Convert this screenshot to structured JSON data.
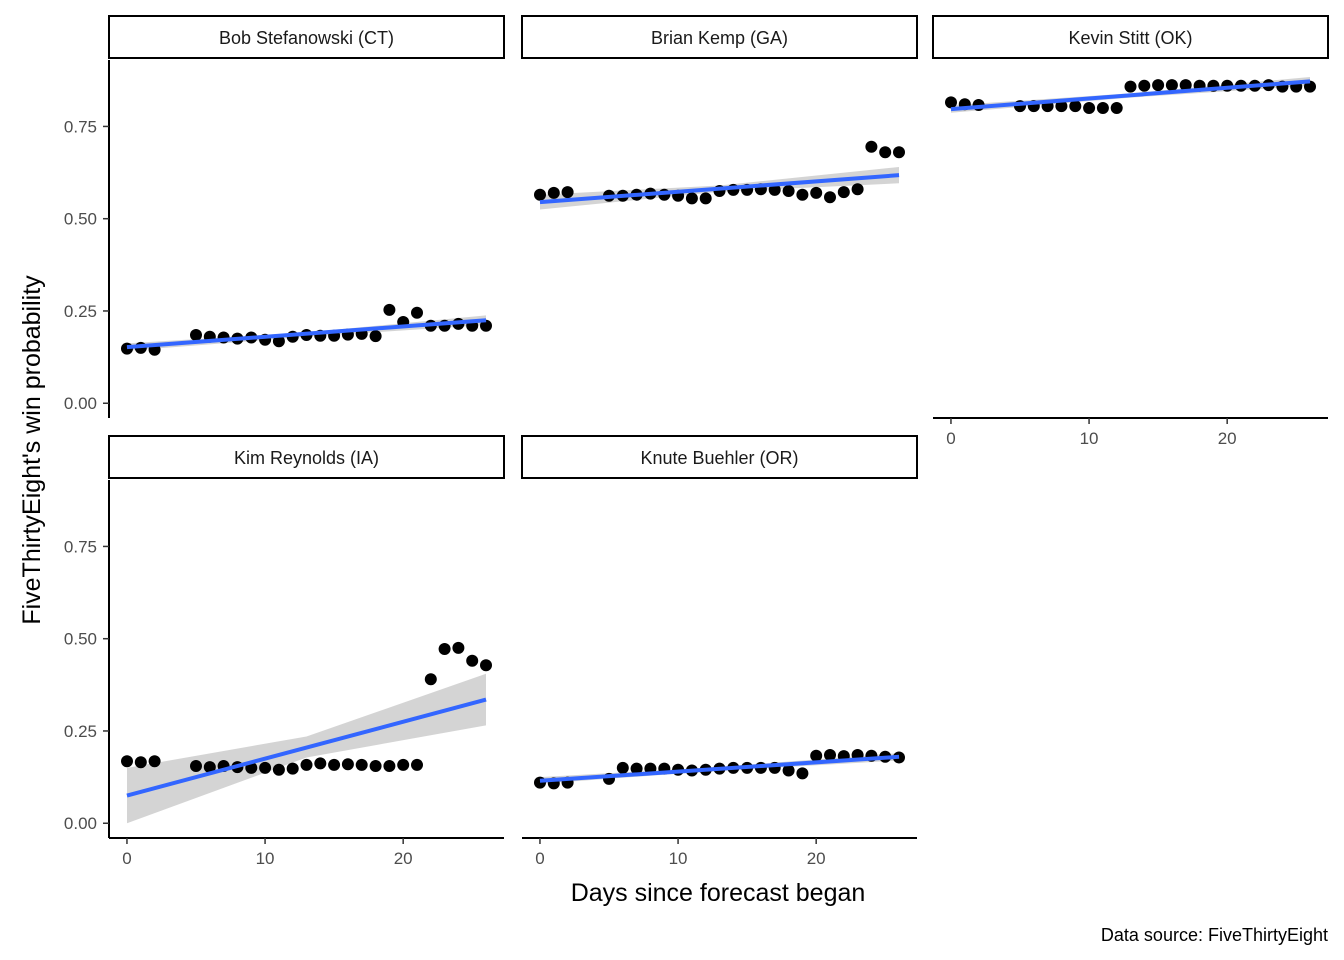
{
  "chart_data": {
    "type": "scatter",
    "xlabel": "Days since forecast began",
    "ylabel": "FiveThirtyEight's win probability",
    "caption": "Data source: FiveThirtyEight",
    "xlim": [
      -1.3,
      27.3
    ],
    "ylim": [
      -0.04,
      0.93
    ],
    "x_ticks": [
      0,
      10,
      20
    ],
    "x_tick_labels": [
      "0",
      "10",
      "20"
    ],
    "y_ticks": [
      0,
      0.25,
      0.5,
      0.75
    ],
    "y_tick_labels": [
      "0.00",
      "0.25",
      "0.50",
      "0.75"
    ],
    "grid": false,
    "colors": {
      "points": "#000000",
      "fit_line": "#3366ff",
      "confidence_band": "#cccccc",
      "strip_fill": "#ffffff",
      "strip_border": "#000000"
    },
    "panels": [
      {
        "name": "Bob Stefanowski (CT)",
        "x": [
          0,
          1,
          2,
          5,
          6,
          7,
          8,
          9,
          10,
          11,
          12,
          13,
          14,
          15,
          16,
          17,
          18,
          19,
          20,
          21,
          22,
          23,
          24,
          25,
          26
        ],
        "y": [
          0.148,
          0.15,
          0.145,
          0.185,
          0.18,
          0.178,
          0.175,
          0.178,
          0.172,
          0.168,
          0.18,
          0.185,
          0.183,
          0.183,
          0.186,
          0.188,
          0.182,
          0.253,
          0.22,
          0.245,
          0.21,
          0.21,
          0.215,
          0.21,
          0.21
        ],
        "fit": {
          "y_start": 0.152,
          "y_end": 0.225
        },
        "band": {
          "lower_start": 0.142,
          "upper_start": 0.162,
          "lower_mid": 0.18,
          "upper_mid": 0.192,
          "lower_end": 0.212,
          "upper_end": 0.238
        }
      },
      {
        "name": "Brian Kemp (GA)",
        "x": [
          0,
          1,
          2,
          5,
          6,
          7,
          8,
          9,
          10,
          11,
          12,
          13,
          14,
          15,
          16,
          17,
          18,
          19,
          20,
          21,
          22,
          23,
          24,
          25,
          26
        ],
        "y": [
          0.565,
          0.57,
          0.572,
          0.562,
          0.562,
          0.565,
          0.568,
          0.565,
          0.562,
          0.555,
          0.555,
          0.575,
          0.578,
          0.578,
          0.58,
          0.578,
          0.575,
          0.565,
          0.57,
          0.558,
          0.572,
          0.58,
          0.695,
          0.68,
          0.68
        ],
        "fit": {
          "y_start": 0.545,
          "y_end": 0.618
        },
        "band": {
          "lower_start": 0.525,
          "upper_start": 0.565,
          "lower_mid": 0.573,
          "upper_mid": 0.59,
          "lower_end": 0.596,
          "upper_end": 0.64
        }
      },
      {
        "name": "Kevin Stitt (OK)",
        "x": [
          0,
          1,
          2,
          5,
          6,
          7,
          8,
          9,
          10,
          11,
          12,
          13,
          14,
          15,
          16,
          17,
          18,
          19,
          20,
          21,
          22,
          23,
          24,
          25,
          26
        ],
        "y": [
          0.815,
          0.81,
          0.808,
          0.805,
          0.805,
          0.805,
          0.805,
          0.805,
          0.8,
          0.8,
          0.8,
          0.858,
          0.86,
          0.862,
          0.862,
          0.862,
          0.86,
          0.86,
          0.86,
          0.86,
          0.86,
          0.862,
          0.858,
          0.858,
          0.858
        ],
        "fit": {
          "y_start": 0.797,
          "y_end": 0.872
        },
        "band": {
          "lower_start": 0.787,
          "upper_start": 0.807,
          "lower_mid": 0.828,
          "upper_mid": 0.84,
          "lower_end": 0.86,
          "upper_end": 0.884
        }
      },
      {
        "name": "Kim Reynolds (IA)",
        "x": [
          0,
          1,
          2,
          5,
          6,
          7,
          8,
          9,
          10,
          11,
          12,
          13,
          14,
          15,
          16,
          17,
          18,
          19,
          20,
          21,
          22,
          23,
          24,
          25,
          26
        ],
        "y": [
          0.168,
          0.165,
          0.168,
          0.155,
          0.152,
          0.155,
          0.152,
          0.15,
          0.15,
          0.145,
          0.148,
          0.158,
          0.162,
          0.158,
          0.16,
          0.158,
          0.155,
          0.155,
          0.158,
          0.158,
          0.39,
          0.472,
          0.475,
          0.44,
          0.428
        ],
        "fit": {
          "y_start": 0.075,
          "y_end": 0.335
        },
        "band": {
          "lower_start": 0.0,
          "upper_start": 0.15,
          "lower_mid": 0.178,
          "upper_mid": 0.235,
          "lower_end": 0.265,
          "upper_end": 0.405
        }
      },
      {
        "name": "Knute Buehler (OR)",
        "x": [
          0,
          1,
          2,
          5,
          6,
          7,
          8,
          9,
          10,
          11,
          12,
          13,
          14,
          15,
          16,
          17,
          18,
          19,
          20,
          21,
          22,
          23,
          24,
          25,
          26
        ],
        "y": [
          0.11,
          0.108,
          0.11,
          0.12,
          0.15,
          0.148,
          0.148,
          0.148,
          0.145,
          0.143,
          0.145,
          0.148,
          0.15,
          0.15,
          0.15,
          0.15,
          0.143,
          0.135,
          0.183,
          0.185,
          0.182,
          0.185,
          0.183,
          0.18,
          0.178
        ],
        "fit": {
          "y_start": 0.115,
          "y_end": 0.18
        },
        "band": {
          "lower_start": 0.107,
          "upper_start": 0.125,
          "lower_mid": 0.142,
          "upper_mid": 0.153,
          "lower_end": 0.17,
          "upper_end": 0.19
        }
      }
    ]
  }
}
